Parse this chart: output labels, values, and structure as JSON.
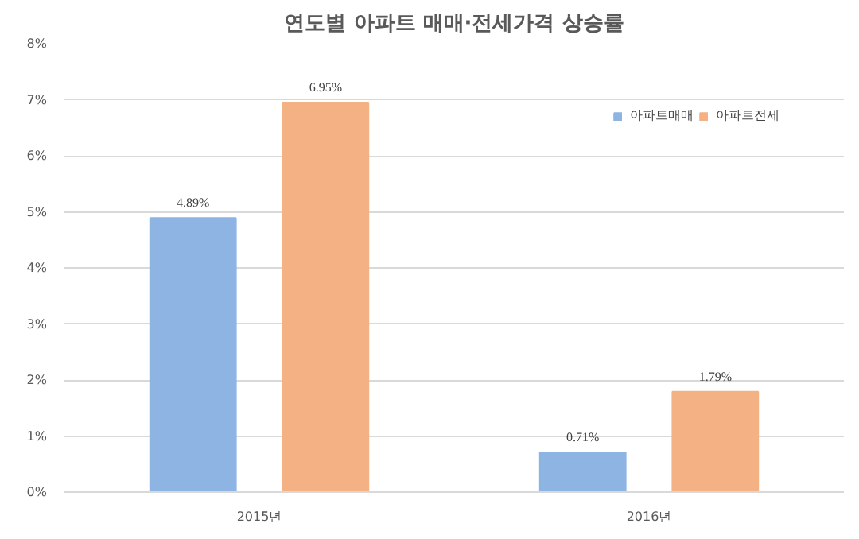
{
  "chart_data": {
    "type": "bar",
    "title": "연도별 아파트 매매·전세가격 상승률",
    "categories": [
      "2015년",
      "2016년"
    ],
    "series": [
      {
        "name": "아파트매매",
        "color": "#8db4e2",
        "values": [
          4.89,
          0.71
        ],
        "value_labels": [
          "4.89%",
          "0.71%"
        ]
      },
      {
        "name": "아파트전세",
        "color": "#f4b183",
        "values": [
          6.95,
          1.79
        ],
        "value_labels": [
          "6.95%",
          "1.79%"
        ]
      }
    ],
    "ylim": [
      0,
      8
    ],
    "yticks": [
      {
        "value": 0,
        "label": "0%"
      },
      {
        "value": 1,
        "label": "1%"
      },
      {
        "value": 2,
        "label": "2%"
      },
      {
        "value": 3,
        "label": "3%"
      },
      {
        "value": 4,
        "label": "4%"
      },
      {
        "value": 5,
        "label": "5%"
      },
      {
        "value": 6,
        "label": "6%"
      },
      {
        "value": 7,
        "label": "7%"
      },
      {
        "value": 8,
        "label": "8%"
      }
    ],
    "grid": "y",
    "legend": "top right"
  }
}
